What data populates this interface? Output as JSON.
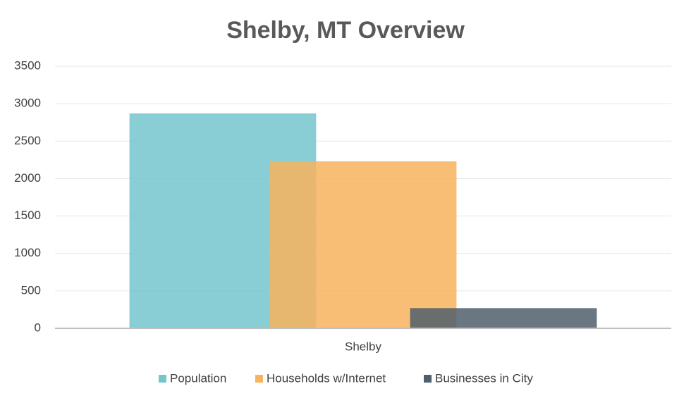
{
  "chart_data": {
    "type": "bar",
    "title": "Shelby, MT Overview",
    "categories": [
      "Shelby"
    ],
    "series": [
      {
        "name": "Population",
        "color": "#74c5cc",
        "values": [
          2870
        ]
      },
      {
        "name": "Households w/Internet",
        "color": "#f8b35e",
        "values": [
          2230
        ]
      },
      {
        "name": "Businesses in City",
        "color": "#505f6c",
        "values": [
          270
        ]
      }
    ],
    "ylim": [
      0,
      3500
    ],
    "yticks": [
      0,
      500,
      1000,
      1500,
      2000,
      2500,
      3000,
      3500
    ],
    "grid": true
  }
}
